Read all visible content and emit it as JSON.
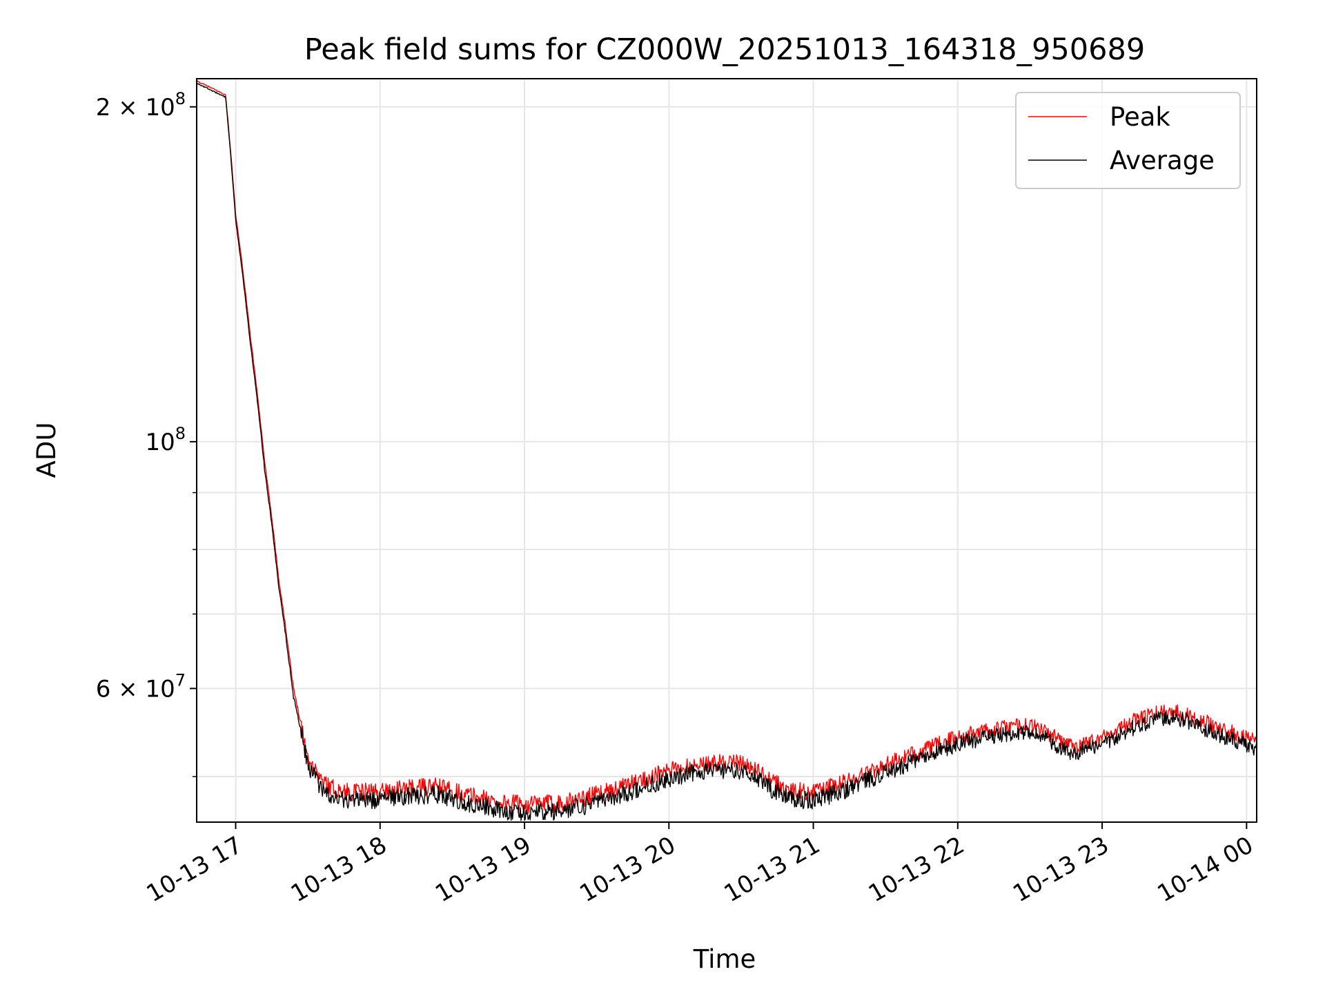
{
  "chart_data": {
    "type": "line",
    "title": "Peak field sums for CZ000W_20251013_164318_950689",
    "xlabel": "Time",
    "ylabel": "ADU",
    "yscale": "log",
    "ylim": [
      45500000,
      212000000
    ],
    "xlim_hours": [
      16.73,
      24.07
    ],
    "grid": true,
    "legend_position": "top-right",
    "x_ticks": [
      {
        "label": "10-13 17",
        "hour": 17
      },
      {
        "label": "10-13 18",
        "hour": 18
      },
      {
        "label": "10-13 19",
        "hour": 19
      },
      {
        "label": "10-13 20",
        "hour": 20
      },
      {
        "label": "10-13 21",
        "hour": 21
      },
      {
        "label": "10-13 22",
        "hour": 22
      },
      {
        "label": "10-13 23",
        "hour": 23
      },
      {
        "label": "10-14 00",
        "hour": 24
      }
    ],
    "y_major_ticks": [
      {
        "value": 200000000,
        "mantissa": "2",
        "exponent": "8"
      },
      {
        "value": 100000000,
        "mantissa": "",
        "exponent": "8"
      },
      {
        "value": 60000000,
        "mantissa": "6",
        "exponent": "7"
      }
    ],
    "y_minor_ticks": [
      90000000,
      80000000,
      70000000,
      50000000
    ],
    "times_label": "×",
    "base_label": "10",
    "series": [
      {
        "name": "Peak",
        "color": "#ff0000",
        "noise": 900000,
        "x_hours": [
          16.73,
          16.93,
          17.0,
          17.1,
          17.2,
          17.3,
          17.4,
          17.5,
          17.6,
          17.7,
          17.8,
          18.0,
          18.2,
          18.4,
          18.6,
          18.8,
          19.0,
          19.2,
          19.4,
          19.6,
          19.8,
          20.0,
          20.2,
          20.4,
          20.5,
          20.6,
          20.7,
          20.8,
          20.9,
          21.0,
          21.2,
          21.4,
          21.6,
          21.8,
          22.0,
          22.2,
          22.4,
          22.5,
          22.6,
          22.7,
          22.8,
          23.0,
          23.2,
          23.4,
          23.5,
          23.6,
          23.8,
          24.0,
          24.07
        ],
        "values": [
          211000000,
          205000000,
          160000000,
          125000000,
          96000000,
          75000000,
          60000000,
          52000000,
          49500000,
          48600000,
          48400000,
          48500000,
          48800000,
          49000000,
          48200000,
          47500000,
          47200000,
          47300000,
          47800000,
          48600000,
          49600000,
          50600000,
          51300000,
          51500000,
          51400000,
          50700000,
          49600000,
          48800000,
          48500000,
          48400000,
          49300000,
          50600000,
          51800000,
          53000000,
          54300000,
          55000000,
          55500000,
          55600000,
          55000000,
          53900000,
          53300000,
          54200000,
          56000000,
          57200000,
          57300000,
          56800000,
          55400000,
          54100000,
          53800000
        ]
      },
      {
        "name": "Average",
        "color": "#000000",
        "noise": 900000,
        "x_hours": [
          16.73,
          16.93,
          17.0,
          17.1,
          17.2,
          17.3,
          17.4,
          17.5,
          17.6,
          17.7,
          17.8,
          18.0,
          18.2,
          18.4,
          18.6,
          18.8,
          19.0,
          19.2,
          19.4,
          19.6,
          19.8,
          20.0,
          20.2,
          20.4,
          20.5,
          20.6,
          20.7,
          20.8,
          20.9,
          21.0,
          21.2,
          21.4,
          21.6,
          21.8,
          22.0,
          22.2,
          22.4,
          22.5,
          22.6,
          22.7,
          22.8,
          23.0,
          23.2,
          23.4,
          23.5,
          23.6,
          23.8,
          24.0,
          24.07
        ],
        "values": [
          210000000,
          204000000,
          158000000,
          123000000,
          94500000,
          73800000,
          59000000,
          51200000,
          48600000,
          47800000,
          47600000,
          47700000,
          48000000,
          48200000,
          47400000,
          46700000,
          46400000,
          46500000,
          47000000,
          47800000,
          48800000,
          49800000,
          50500000,
          50700000,
          50600000,
          49900000,
          48800000,
          48000000,
          47700000,
          47600000,
          48500000,
          49800000,
          51000000,
          52200000,
          53500000,
          54200000,
          54700000,
          54800000,
          54200000,
          53100000,
          52500000,
          53400000,
          55200000,
          56400000,
          56500000,
          56000000,
          54600000,
          53300000,
          53000000
        ]
      }
    ]
  }
}
